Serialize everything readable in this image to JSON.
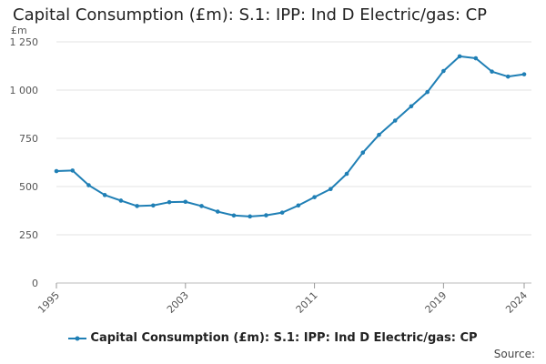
{
  "chart_data": {
    "type": "line",
    "title": "Capital Consumption (£m): S.1: IPP: Ind D Electric/gas: CP",
    "ylabel": "£m",
    "xlabel": "",
    "ylim": [
      0,
      1250
    ],
    "yticks": [
      0,
      250,
      500,
      750,
      1000,
      1250
    ],
    "ytick_labels": [
      "0",
      "250",
      "500",
      "750",
      "1 000",
      "1 250"
    ],
    "xticks": [
      1995,
      2003,
      2011,
      2019,
      2024
    ],
    "xlim": [
      1995,
      2024
    ],
    "grid": true,
    "legend_position": "bottom",
    "color": "#1f7fb5",
    "series": [
      {
        "name": "Capital Consumption (£m): S.1: IPP: Ind D Electric/gas: CP",
        "x": [
          1995,
          1996,
          1997,
          1998,
          1999,
          2000,
          2001,
          2002,
          2003,
          2004,
          2005,
          2006,
          2007,
          2008,
          2009,
          2010,
          2011,
          2012,
          2013,
          2014,
          2015,
          2016,
          2017,
          2018,
          2019,
          2020,
          2021,
          2022,
          2023,
          2024
        ],
        "values": [
          580,
          583,
          507,
          456,
          427,
          399,
          402,
          419,
          421,
          399,
          370,
          350,
          345,
          351,
          365,
          402,
          445,
          487,
          566,
          676,
          768,
          842,
          916,
          990,
          1099,
          1175,
          1165,
          1096,
          1070,
          1082
        ]
      }
    ]
  },
  "source_label": "Source:"
}
